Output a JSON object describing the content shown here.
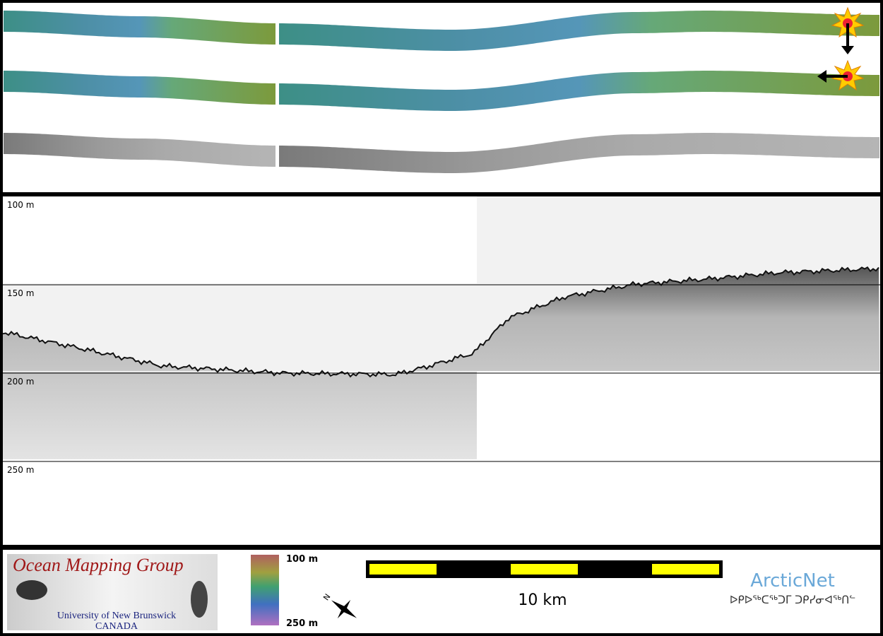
{
  "profile_panel": {
    "depth_labels": [
      "100 m",
      "150 m",
      "200 m",
      "250 m"
    ]
  },
  "footer": {
    "logo": {
      "title": "Ocean Mapping Group",
      "line1": "University of New Brunswick",
      "line2": "CANADA"
    },
    "colorbar": {
      "top_label": "100 m",
      "bottom_label": "250 m"
    },
    "scale_bar": {
      "label": "10 km"
    },
    "north_arrow": {
      "label": "N"
    },
    "partner": {
      "name": "ArcticNet",
      "syllabics": "ᐅᑭᐅᖅᑕᖅᑐᒥ ᑐᑭᓯᓂᐊᖅᑎᓪ"
    }
  }
}
